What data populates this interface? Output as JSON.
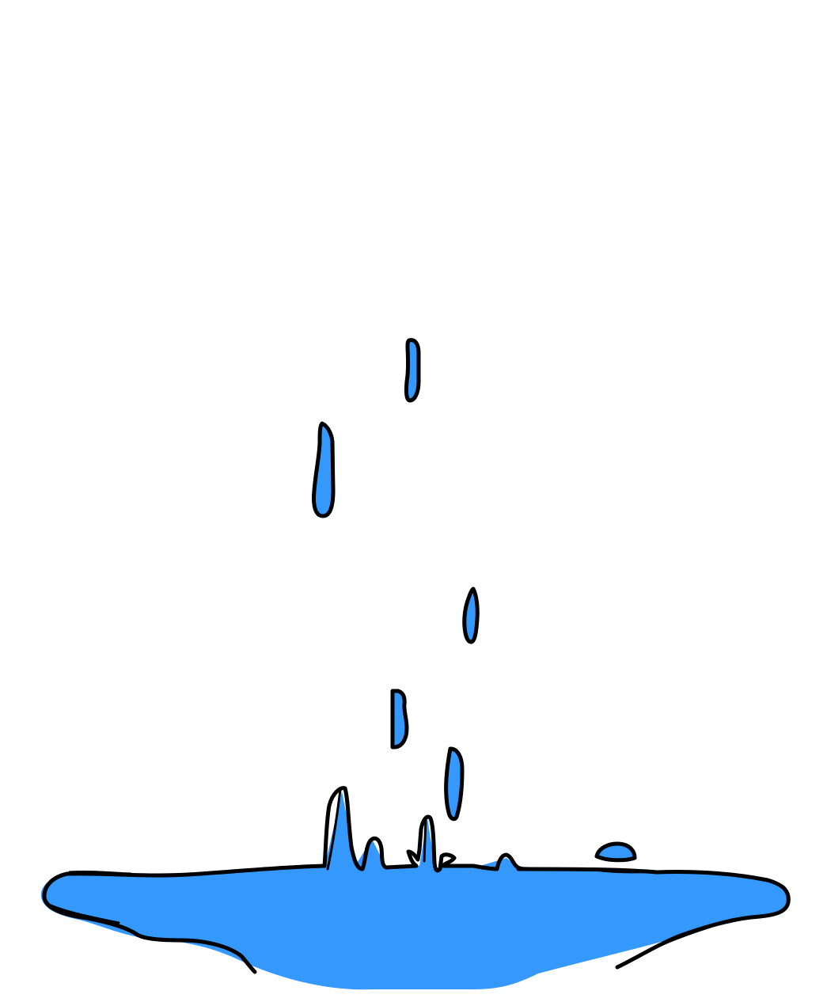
{
  "illustration": {
    "subject": "water-drops-falling-into-puddle",
    "colors": {
      "water": "#3598fd",
      "outline": "#000000",
      "background": "#ffffff"
    },
    "drop_count": 5,
    "splash_droplet_count": 1
  }
}
